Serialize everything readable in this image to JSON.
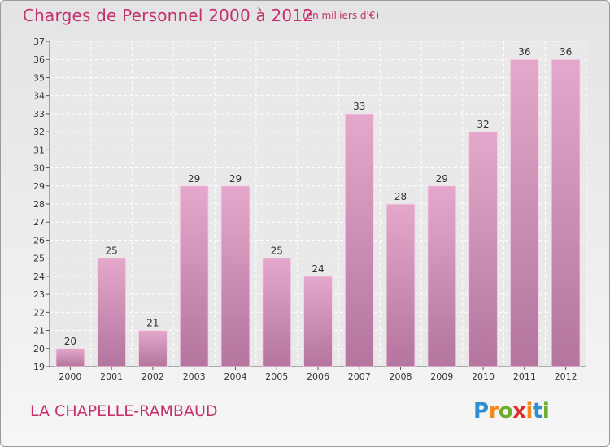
{
  "header": {
    "title": "Charges de Personnel 2000 à 2012",
    "subtitle": "(en milliers d'€)"
  },
  "footer": {
    "place": "LA CHAPELLE-RAMBAUD",
    "logo_text": "Proxiti"
  },
  "colors": {
    "accent": "#c4306e",
    "bar_top": "#e5a7cb",
    "bar_bottom": "#b4759e"
  },
  "chart_data": {
    "type": "bar",
    "title": "Charges de Personnel 2000 à 2012",
    "subtitle": "(en milliers d'€)",
    "categories": [
      "2000",
      "2001",
      "2002",
      "2003",
      "2004",
      "2005",
      "2006",
      "2007",
      "2008",
      "2009",
      "2010",
      "2011",
      "2012"
    ],
    "values": [
      20,
      25,
      21,
      29,
      29,
      25,
      24,
      33,
      28,
      29,
      32,
      36,
      36
    ],
    "ylim": [
      19,
      37
    ],
    "yticks": [
      19,
      20,
      21,
      22,
      23,
      24,
      25,
      26,
      27,
      28,
      29,
      30,
      31,
      32,
      33,
      34,
      35,
      36,
      37
    ],
    "grid": true,
    "data_labels": true
  }
}
